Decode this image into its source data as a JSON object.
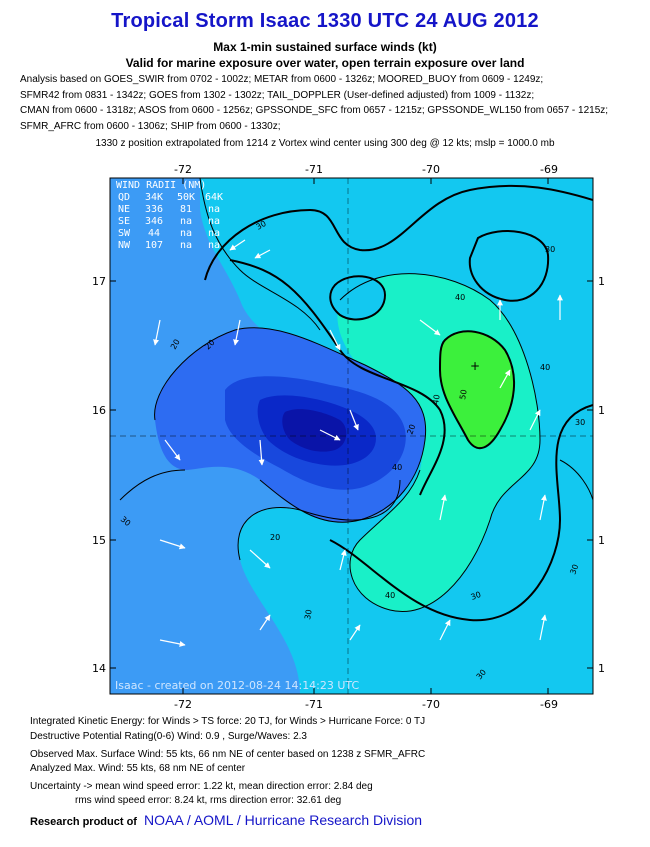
{
  "title": "Tropical Storm Isaac 1330 UTC 24 AUG 2012",
  "subtitle_1": "Max 1-min sustained surface winds (kt)",
  "subtitle_2": "Valid for marine exposure over water, open terrain exposure over land",
  "analysis_lines": [
    "Analysis based on GOES_SWIR from 0702 - 1002z; METAR from 0600 - 1326z; MOORED_BUOY from 0609 - 1249z;",
    "SFMR42 from 0831 - 1342z; GOES from 1302 - 1302z; TAIL_DOPPLER (User-defined adjusted) from 1009 - 1132z;",
    "CMAN from 0600 - 1318z; ASOS from 0600 - 1256z; GPSSONDE_SFC from 0657 - 1215z; GPSSONDE_WL150 from 0657 - 1215z;",
    "SFMR_AFRC from 0600 - 1306z; SHIP from 0600 - 1330z;"
  ],
  "position_note": "1330 z position extrapolated from 1214 z Vortex wind center using 300 deg @ 12 kts; mslp = 1000.0 mb",
  "map": {
    "lon_labels": [
      "-72",
      "-71",
      "-70",
      "-69"
    ],
    "lat_labels": [
      "17",
      "16",
      "15",
      "14"
    ],
    "right_lat_labels": [
      "1",
      "1",
      "1",
      "1"
    ],
    "wind_radii": {
      "title": "WIND RADII (NM)",
      "header": [
        "QD",
        "34K",
        "50K",
        "64K"
      ],
      "rows": [
        [
          "NE",
          "336",
          "81",
          "na"
        ],
        [
          "SE",
          "346",
          "na",
          "na"
        ],
        [
          "SW",
          "44",
          "na",
          "na"
        ],
        [
          "NW",
          "107",
          "na",
          "na"
        ]
      ]
    },
    "contour_labels": [
      "30",
      "40",
      "20",
      "40",
      "20",
      "30",
      "50",
      "40",
      "30",
      "30",
      "20",
      "30",
      "40",
      "30",
      "20",
      "30",
      "40",
      "30"
    ],
    "watermark": "Isaac - created on 2012-08-24 14:14:23 UTC",
    "colors": {
      "wind_10_20": "#2d6cf2",
      "wind_20_30": "#3c9bf5",
      "wind_30_40": "#13c8f0",
      "wind_40_50": "#19f0c8",
      "wind_50_60": "#3cf03c",
      "core_low_1": "#1848dd",
      "core_low_2": "#0a28c8",
      "core_low_3": "#0a14a8",
      "contour_line": "#000000"
    }
  },
  "ike_line": "Integrated Kinetic Energy: for Winds > TS force: 20 TJ, for Winds > Hurricane Force: 0 TJ",
  "dpr_line": "Destructive Potential Rating(0-6)  Wind: 0.9 , Surge/Waves: 2.3",
  "observed_line": "Observed Max. Surface Wind: 55 kts, 66 nm NE of center based on 1238 z SFMR_AFRC",
  "analyzed_line": "Analyzed Max. Wind: 55 kts, 68 nm  NE of center",
  "uncertainty_line_1": "Uncertainty -> mean wind speed error: 1.22 kt, mean direction error: 2.84 deg",
  "uncertainty_line_2": "rms wind speed error: 8.24 kt, rms direction error: 32.61 deg",
  "footer": {
    "prefix": "Research product of",
    "org": "NOAA / AOML / Hurricane Research Division"
  }
}
